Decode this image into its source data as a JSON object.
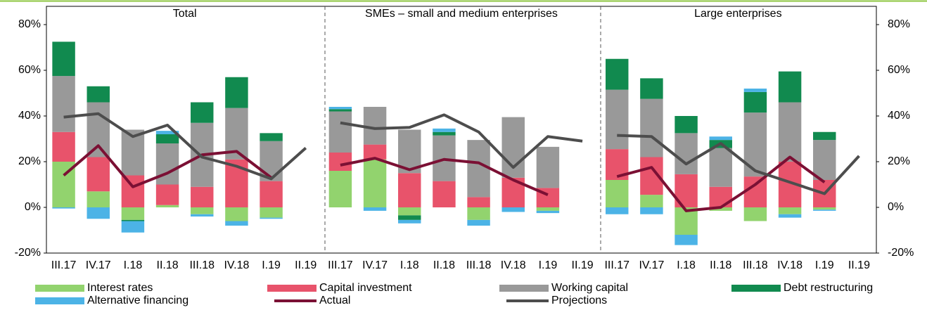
{
  "chart_data": {
    "type": "bar",
    "ylim": [
      -20,
      80
    ],
    "yticks": [
      {
        "value": -20,
        "label": "-20%"
      },
      {
        "value": 0,
        "label": "0%"
      },
      {
        "value": 20,
        "label": "20%"
      },
      {
        "value": 40,
        "label": "40%"
      },
      {
        "value": 60,
        "label": "60%"
      },
      {
        "value": 80,
        "label": "80%"
      }
    ],
    "y2lim": [
      -20,
      80
    ],
    "y2ticks": [
      {
        "value": -20,
        "label": "-20%"
      },
      {
        "value": 0,
        "label": "0%"
      },
      {
        "value": 20,
        "label": "20%"
      },
      {
        "value": 40,
        "label": "40%"
      },
      {
        "value": 60,
        "label": "60%"
      },
      {
        "value": 80,
        "label": "80%"
      }
    ],
    "panels": [
      {
        "title": "Total",
        "categories": [
          "III.17",
          "IV.17",
          "I.18",
          "II.18",
          "III.18",
          "IV.18",
          "I.19",
          "II.19"
        ]
      },
      {
        "title": "SMEs – small and medium enterprises",
        "categories": [
          "III.17",
          "IV.17",
          "I.18",
          "II.18",
          "III.18",
          "IV.18",
          "I.19",
          "II.19"
        ]
      },
      {
        "title": "Large enterprises",
        "categories": [
          "III.17",
          "IV.17",
          "I.18",
          "II.18",
          "III.18",
          "IV.18",
          "I.19",
          "II.19"
        ]
      }
    ],
    "series": [
      {
        "name": "Interest rates",
        "type": "bar",
        "color": "#92d36e",
        "values": [
          [
            20,
            7,
            -5.5,
            1,
            -3,
            -6,
            -4.5,
            null
          ],
          [
            16,
            21,
            -3.5,
            0,
            -5.5,
            0,
            -1.5,
            null
          ],
          [
            12,
            5.5,
            -12,
            -1.5,
            -6,
            -3,
            -1,
            null
          ]
        ]
      },
      {
        "name": "Capital investment",
        "type": "bar",
        "color": "#e8536b",
        "values": [
          [
            13,
            15,
            14,
            9,
            9,
            21,
            11.5,
            null
          ],
          [
            8,
            6.5,
            15,
            11.5,
            4.5,
            13,
            8.5,
            null
          ],
          [
            13.5,
            16.5,
            14.5,
            9,
            13.5,
            20,
            12,
            null
          ]
        ]
      },
      {
        "name": "Working capital",
        "type": "bar",
        "color": "#999999",
        "values": [
          [
            24.5,
            24,
            20,
            18,
            28,
            22.5,
            17.5,
            null
          ],
          [
            18,
            16.5,
            19,
            20,
            25,
            26.5,
            18,
            null
          ],
          [
            26,
            25.5,
            18,
            17,
            28,
            26,
            17.5,
            null
          ]
        ]
      },
      {
        "name": "Debt restructuring",
        "type": "bar",
        "color": "#118a4f",
        "values": [
          [
            15,
            7,
            -0.5,
            4,
            9,
            13.5,
            3.5,
            null
          ],
          [
            1,
            0,
            -2,
            1.5,
            0,
            0,
            0,
            null
          ],
          [
            13.5,
            9,
            7.5,
            3.5,
            9,
            13.5,
            3.5,
            null
          ]
        ]
      },
      {
        "name": "Alternative financing",
        "type": "bar",
        "color": "#4cb3e6",
        "values": [
          [
            -0.5,
            -5,
            -5,
            1.5,
            -1,
            -2,
            -0.5,
            null
          ],
          [
            1,
            -1.5,
            -1.5,
            1.5,
            -2.5,
            -2,
            -1,
            null
          ],
          [
            -3,
            -3,
            -4.5,
            1.5,
            1.5,
            -1.5,
            -0.5,
            null
          ]
        ]
      },
      {
        "name": "Actual",
        "type": "line",
        "color": "#7b1034",
        "values": [
          [
            14,
            27,
            9,
            15,
            23,
            24.5,
            13,
            null
          ],
          [
            18.5,
            21.5,
            16.5,
            21,
            19.5,
            12,
            5.5,
            null
          ],
          [
            13.5,
            17.5,
            -1.5,
            0,
            10,
            22,
            11,
            null
          ]
        ]
      },
      {
        "name": "Projections",
        "type": "line",
        "color": "#4d4d4d",
        "values": [
          [
            39.5,
            41,
            31,
            36,
            22,
            18,
            12.5,
            26
          ],
          [
            37,
            34.5,
            35,
            40.5,
            33,
            17.5,
            31,
            29
          ],
          [
            31.5,
            31,
            19,
            28,
            16,
            11,
            6,
            22.5
          ]
        ]
      }
    ]
  }
}
